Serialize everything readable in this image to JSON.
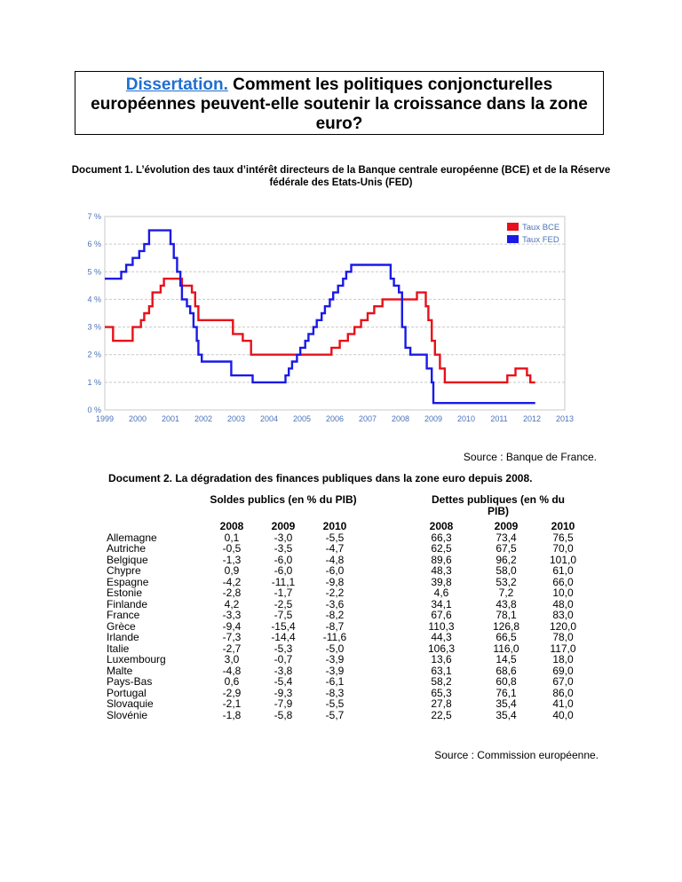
{
  "title": {
    "link": "Dissertation.",
    "text": " Comment les politiques conjoncturelles européennes peuvent-elle soutenir la croissance dans la zone euro?"
  },
  "doc1": {
    "heading": "Document 1. L’évolution des taux d’intérêt directeurs de la Banque centrale européenne (BCE) et de la Réserve fédérale des Etats-Unis (FED)",
    "source": "Source : Banque de France."
  },
  "chart_data": {
    "type": "line",
    "y_ticks": [
      "0 %",
      "1 %",
      "2 %",
      "3 %",
      "4 %",
      "5 %",
      "6 %",
      "7 %"
    ],
    "x_ticks": [
      "1999",
      "2000",
      "2001",
      "2002",
      "2003",
      "2004",
      "2005",
      "2006",
      "2007",
      "2008",
      "2009",
      "2010",
      "2011",
      "2012",
      "2013"
    ],
    "xlim": [
      1999,
      2013
    ],
    "ylim": [
      0,
      7
    ],
    "grid": true,
    "legend_position": "top-right",
    "colors": {
      "bce": "#e8101a",
      "fed": "#1a1ae6"
    },
    "series": [
      {
        "name": "Taux BCE",
        "points": [
          [
            1999.0,
            3.0
          ],
          [
            1999.25,
            2.5
          ],
          [
            1999.85,
            3.0
          ],
          [
            2000.1,
            3.25
          ],
          [
            2000.2,
            3.5
          ],
          [
            2000.35,
            3.75
          ],
          [
            2000.45,
            4.25
          ],
          [
            2000.7,
            4.5
          ],
          [
            2000.8,
            4.75
          ],
          [
            2001.35,
            4.5
          ],
          [
            2001.65,
            4.25
          ],
          [
            2001.75,
            3.75
          ],
          [
            2001.85,
            3.25
          ],
          [
            2002.9,
            2.75
          ],
          [
            2003.2,
            2.5
          ],
          [
            2003.45,
            2.0
          ],
          [
            2005.9,
            2.25
          ],
          [
            2006.15,
            2.5
          ],
          [
            2006.4,
            2.75
          ],
          [
            2006.6,
            3.0
          ],
          [
            2006.8,
            3.25
          ],
          [
            2007.0,
            3.5
          ],
          [
            2007.2,
            3.75
          ],
          [
            2007.45,
            4.0
          ],
          [
            2008.5,
            4.25
          ],
          [
            2008.77,
            3.75
          ],
          [
            2008.85,
            3.25
          ],
          [
            2008.95,
            2.5
          ],
          [
            2009.05,
            2.0
          ],
          [
            2009.2,
            1.5
          ],
          [
            2009.35,
            1.0
          ],
          [
            2011.25,
            1.25
          ],
          [
            2011.5,
            1.5
          ],
          [
            2011.85,
            1.25
          ],
          [
            2011.95,
            1.0
          ],
          [
            2012.1,
            1.0
          ]
        ]
      },
      {
        "name": "Taux FED",
        "points": [
          [
            1999.0,
            4.75
          ],
          [
            1999.5,
            5.0
          ],
          [
            1999.65,
            5.25
          ],
          [
            1999.85,
            5.5
          ],
          [
            2000.05,
            5.75
          ],
          [
            2000.2,
            6.0
          ],
          [
            2000.35,
            6.5
          ],
          [
            2001.0,
            6.0
          ],
          [
            2001.1,
            5.5
          ],
          [
            2001.2,
            5.0
          ],
          [
            2001.3,
            4.5
          ],
          [
            2001.35,
            4.0
          ],
          [
            2001.5,
            3.75
          ],
          [
            2001.6,
            3.5
          ],
          [
            2001.7,
            3.0
          ],
          [
            2001.8,
            2.5
          ],
          [
            2001.85,
            2.0
          ],
          [
            2001.95,
            1.75
          ],
          [
            2002.85,
            1.25
          ],
          [
            2003.5,
            1.0
          ],
          [
            2004.5,
            1.25
          ],
          [
            2004.6,
            1.5
          ],
          [
            2004.7,
            1.75
          ],
          [
            2004.85,
            2.0
          ],
          [
            2004.95,
            2.25
          ],
          [
            2005.1,
            2.5
          ],
          [
            2005.2,
            2.75
          ],
          [
            2005.35,
            3.0
          ],
          [
            2005.45,
            3.25
          ],
          [
            2005.6,
            3.5
          ],
          [
            2005.7,
            3.75
          ],
          [
            2005.85,
            4.0
          ],
          [
            2005.95,
            4.25
          ],
          [
            2006.1,
            4.5
          ],
          [
            2006.25,
            4.75
          ],
          [
            2006.35,
            5.0
          ],
          [
            2006.5,
            5.25
          ],
          [
            2007.7,
            4.75
          ],
          [
            2007.8,
            4.5
          ],
          [
            2007.95,
            4.25
          ],
          [
            2008.05,
            3.0
          ],
          [
            2008.15,
            2.25
          ],
          [
            2008.3,
            2.0
          ],
          [
            2008.8,
            1.5
          ],
          [
            2008.95,
            1.0
          ],
          [
            2009.0,
            0.25
          ],
          [
            2012.1,
            0.25
          ]
        ]
      }
    ]
  },
  "doc2": {
    "heading": "Document 2. La dégradation des finances publiques dans la zone euro depuis 2008.",
    "soldes_header": "Soldes publics (en % du PIB)",
    "dettes_header_line1": "Dettes publiques (en % du",
    "dettes_header_line2": "PIB)",
    "years": [
      "2008",
      "2009",
      "2010"
    ],
    "rows": [
      {
        "country": "Allemagne",
        "soldes": [
          "0,1",
          "-3,0",
          "-5,5"
        ],
        "dettes": [
          "66,3",
          "73,4",
          "76,5"
        ]
      },
      {
        "country": "Autriche",
        "soldes": [
          "-0,5",
          "-3,5",
          "-4,7"
        ],
        "dettes": [
          "62,5",
          "67,5",
          "70,0"
        ]
      },
      {
        "country": "Belgique",
        "soldes": [
          "-1,3",
          "-6,0",
          "-4,8"
        ],
        "dettes": [
          "89,6",
          "96,2",
          "101,0"
        ]
      },
      {
        "country": "Chypre",
        "soldes": [
          "0,9",
          "-6,0",
          "-6,0"
        ],
        "dettes": [
          "48,3",
          "58,0",
          "61,0"
        ]
      },
      {
        "country": "Espagne",
        "soldes": [
          "-4,2",
          "-11,1",
          "-9,8"
        ],
        "dettes": [
          "39,8",
          "53,2",
          "66,0"
        ]
      },
      {
        "country": "Estonie",
        "soldes": [
          "-2,8",
          "-1,7",
          "-2,2"
        ],
        "dettes": [
          "4,6",
          "7,2",
          "10,0"
        ]
      },
      {
        "country": "Finlande",
        "soldes": [
          "4,2",
          "-2,5",
          "-3,6"
        ],
        "dettes": [
          "34,1",
          "43,8",
          "48,0"
        ]
      },
      {
        "country": "France",
        "soldes": [
          "-3,3",
          "-7,5",
          "-8,2"
        ],
        "dettes": [
          "67,6",
          "78,1",
          "83,0"
        ]
      },
      {
        "country": "Grèce",
        "soldes": [
          "-9,4",
          "-15,4",
          "-8,7"
        ],
        "dettes": [
          "110,3",
          "126,8",
          "120,0"
        ]
      },
      {
        "country": "Irlande",
        "soldes": [
          "-7,3",
          "-14,4",
          "-11,6"
        ],
        "dettes": [
          "44,3",
          "66,5",
          "78,0"
        ]
      },
      {
        "country": "Italie",
        "soldes": [
          "-2,7",
          "-5,3",
          "-5,0"
        ],
        "dettes": [
          "106,3",
          "116,0",
          "117,0"
        ]
      },
      {
        "country": "Luxembourg",
        "soldes": [
          "3,0",
          "-0,7",
          "-3,9"
        ],
        "dettes": [
          "13,6",
          "14,5",
          "18,0"
        ]
      },
      {
        "country": "Malte",
        "soldes": [
          "-4,8",
          "-3,8",
          "-3,9"
        ],
        "dettes": [
          "63,1",
          "68,6",
          "69,0"
        ]
      },
      {
        "country": "Pays-Bas",
        "soldes": [
          "0,6",
          "-5,4",
          "-6,1"
        ],
        "dettes": [
          "58,2",
          "60,8",
          "67,0"
        ]
      },
      {
        "country": "Portugal",
        "soldes": [
          "-2,9",
          "-9,3",
          "-8,3"
        ],
        "dettes": [
          "65,3",
          "76,1",
          "86,0"
        ]
      },
      {
        "country": "Slovaquie",
        "soldes": [
          "-2,1",
          "-7,9",
          "-5,5"
        ],
        "dettes": [
          "27,8",
          "35,4",
          "41,0"
        ]
      },
      {
        "country": "Slovénie",
        "soldes": [
          "-1,8",
          "-5,8",
          "-5,7"
        ],
        "dettes": [
          "22,5",
          "35,4",
          "40,0"
        ]
      }
    ],
    "source": "Source : Commission européenne."
  }
}
